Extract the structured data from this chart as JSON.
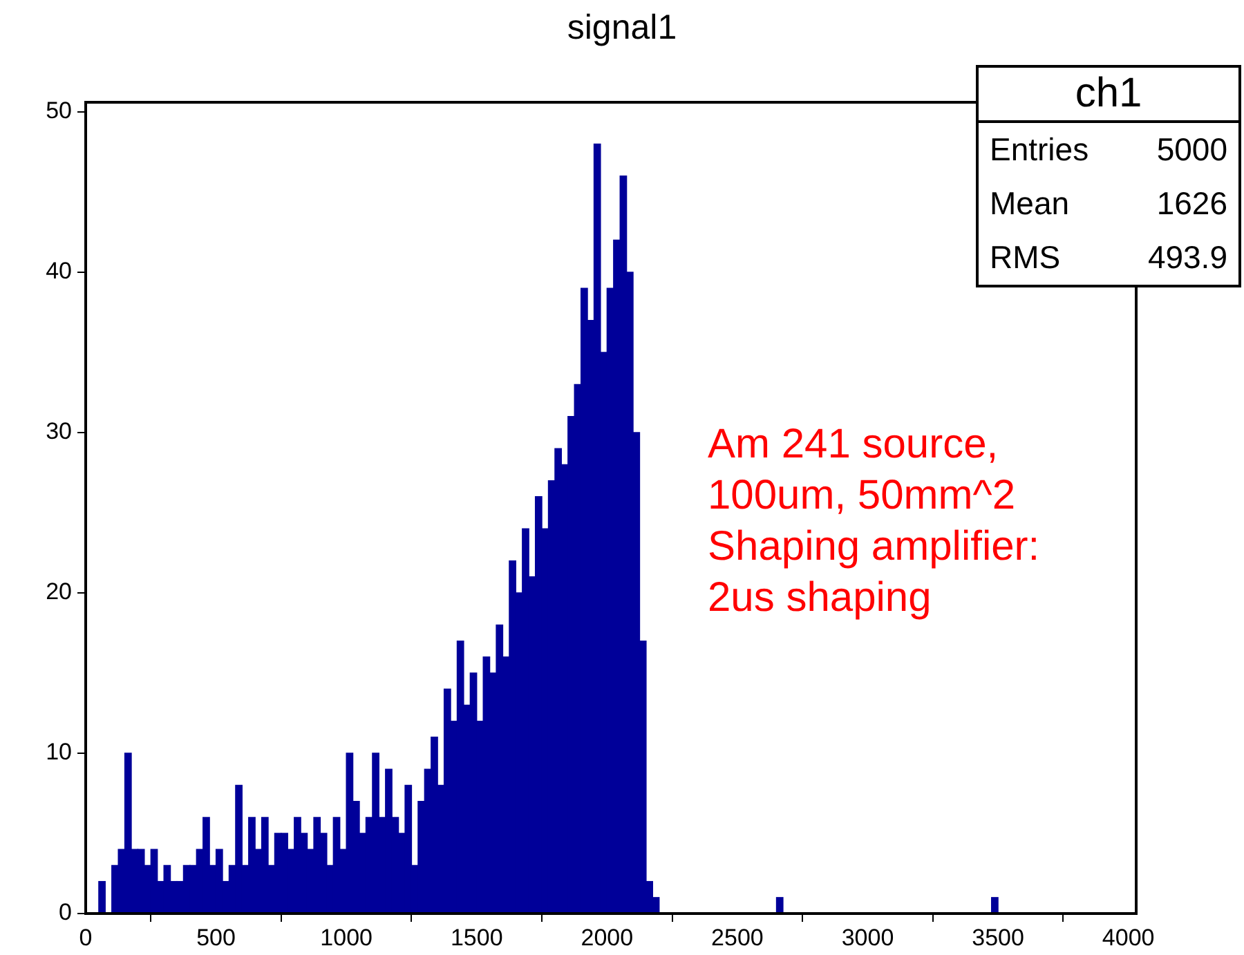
{
  "chart_data": {
    "type": "histogram",
    "title": "signal1",
    "bins": [
      50,
      75,
      100,
      125,
      150,
      175,
      200,
      225,
      250,
      275,
      300,
      325,
      350,
      375,
      400,
      425,
      450,
      475,
      500,
      525,
      550,
      575,
      600,
      625,
      650,
      675,
      700,
      725,
      750,
      775,
      800,
      825,
      850,
      875,
      900,
      925,
      950,
      975,
      1000,
      1025,
      1050,
      1075,
      1100,
      1125,
      1150,
      1175,
      1200,
      1225,
      1250,
      1275,
      1300,
      1325,
      1350,
      1375,
      1400,
      1425,
      1450,
      1475,
      1500,
      1525,
      1550,
      1575,
      1600,
      1625,
      1650,
      1675,
      1700,
      1725,
      1750,
      1775,
      1800,
      1825,
      1850,
      1875,
      1900,
      1925,
      1950,
      1975,
      2000,
      2025,
      2050,
      2075,
      2100,
      2125,
      2150,
      2175,
      2200,
      2225,
      2250,
      2275,
      2300,
      2325,
      2350,
      2375,
      2400,
      2425,
      2450,
      2475,
      2500,
      2525,
      2550,
      2575,
      2600,
      2625,
      2650,
      2675,
      2700,
      2725,
      2750,
      2775,
      2800,
      2825,
      2850,
      2875,
      2900,
      2925,
      2950,
      2975,
      3000,
      3025,
      3050,
      3075,
      3100,
      3125,
      3150,
      3175,
      3200,
      3225,
      3250,
      3275,
      3300,
      3325,
      3350,
      3375,
      3400,
      3425,
      3450,
      3475,
      3500
    ],
    "values": [
      2,
      0,
      3,
      4,
      10,
      4,
      4,
      3,
      4,
      2,
      3,
      2,
      2,
      3,
      3,
      4,
      6,
      3,
      4,
      2,
      3,
      8,
      3,
      6,
      4,
      6,
      3,
      5,
      5,
      4,
      6,
      5,
      4,
      6,
      5,
      3,
      6,
      4,
      10,
      7,
      5,
      6,
      10,
      6,
      9,
      6,
      5,
      8,
      3,
      7,
      9,
      11,
      8,
      14,
      12,
      17,
      13,
      15,
      12,
      16,
      15,
      18,
      16,
      22,
      20,
      24,
      21,
      26,
      24,
      27,
      29,
      28,
      31,
      33,
      39,
      37,
      48,
      35,
      39,
      42,
      46,
      40,
      30,
      17,
      2,
      1,
      0,
      0,
      0,
      0,
      0,
      0,
      0,
      0,
      0,
      0,
      0,
      0,
      0,
      0,
      0,
      0,
      0,
      0,
      1,
      0,
      0,
      0,
      0,
      0,
      0,
      0,
      0,
      0,
      0,
      0,
      0,
      0,
      0,
      0,
      0,
      0,
      0,
      0,
      0,
      0,
      0,
      0,
      0,
      0,
      0,
      0,
      0,
      0,
      0,
      0,
      0,
      1
    ],
    "color": "#000099",
    "xlim": [
      0,
      4030
    ],
    "xticks": [
      0,
      500,
      1000,
      1500,
      2000,
      2500,
      3000,
      3500,
      4000
    ],
    "ylim": [
      0,
      50.6
    ],
    "yticks": [
      0,
      10,
      20,
      30,
      40,
      50
    ],
    "annotations": [
      "ch1",
      "Entries",
      "5000",
      "Mean",
      "1626",
      "RMS",
      "493.9",
      "Am 241 source,\n100um, 50mm^2\nShaping amplifier:\n2us shaping"
    ]
  }
}
